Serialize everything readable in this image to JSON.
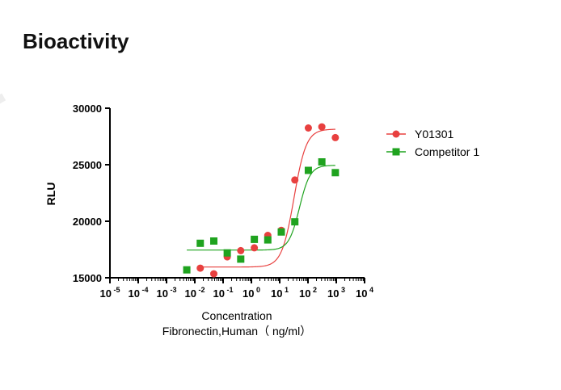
{
  "page": {
    "title": "Bioactivity"
  },
  "chart_data": {
    "type": "scatter",
    "title": "",
    "xlabel": "Concentration",
    "xlabel_line2": "Fibronectin,Human（ ng/ml）",
    "ylabel": "RLU",
    "x_scale": "log",
    "xlim": [
      1e-05,
      10000
    ],
    "ylim": [
      15000,
      30000
    ],
    "x_tick_exponents": [
      -5,
      -4,
      -3,
      -2,
      -1,
      0,
      1,
      2,
      3,
      4
    ],
    "y_ticks": [
      15000,
      20000,
      25000,
      30000
    ],
    "legend_position": "right",
    "grid": false,
    "series": [
      {
        "name": "Y01301",
        "color": "#e8403f",
        "marker": "circle",
        "x": [
          0.0156,
          0.0469,
          0.14,
          0.42,
          1.27,
          3.8,
          11.4,
          34.3,
          103,
          309,
          926
        ],
        "y": [
          15850,
          15350,
          16850,
          17400,
          17650,
          18750,
          19200,
          23650,
          28250,
          28350,
          27400
        ],
        "fit": {
          "bottom": 15950,
          "top": 28150,
          "ec50": 32,
          "hill": 2.0
        }
      },
      {
        "name": "Competitor 1",
        "color": "#1fa31f",
        "marker": "square",
        "x": [
          0.0052,
          0.0156,
          0.0469,
          0.14,
          0.42,
          1.27,
          3.8,
          11.4,
          34.3,
          103,
          309,
          926
        ],
        "y": [
          15700,
          18050,
          18250,
          17200,
          16650,
          18400,
          18350,
          19050,
          19950,
          24500,
          25250,
          24300
        ],
        "fit": {
          "bottom": 17450,
          "top": 24950,
          "ec50": 50,
          "hill": 2.3
        }
      }
    ]
  }
}
